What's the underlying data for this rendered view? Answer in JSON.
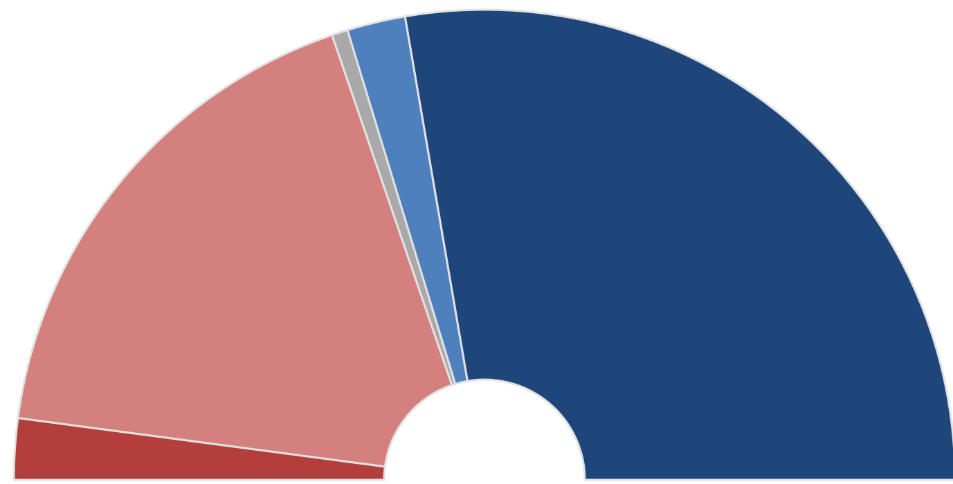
{
  "chart_data": {
    "type": "pie",
    "values": [
      4.2,
      35.3,
      1.1,
      4.0,
      55.4
    ],
    "colors": [
      "#b33f3d",
      "#d3807f",
      "#a9a9a9",
      "#4f80be",
      "#1f467b"
    ],
    "half": true,
    "donut": true
  }
}
